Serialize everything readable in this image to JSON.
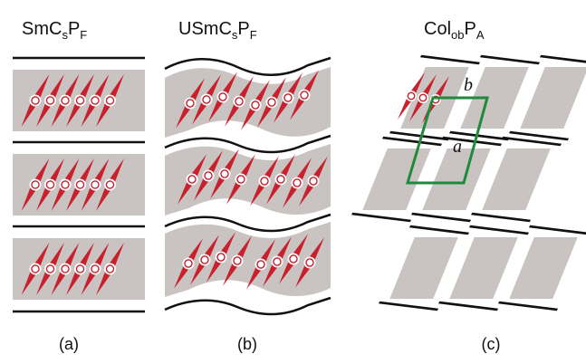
{
  "panels": [
    {
      "title": {
        "main": "SmC",
        "sub1": "s",
        "mid": "P",
        "sub2": "F"
      },
      "caption": "(a)"
    },
    {
      "title": {
        "main": "USmC",
        "sub1": "s",
        "mid": "P",
        "sub2": "F"
      },
      "caption": "(b)"
    },
    {
      "title": {
        "main": "Col",
        "sub1": "ob",
        "mid": "P",
        "sub2": "A"
      },
      "caption": "(c)"
    }
  ],
  "lattice_labels": {
    "a": "a",
    "b": "b"
  },
  "colors": {
    "layer_fill": "#c9c4c2",
    "molecule": "#c8202d",
    "molecule_core": "#ffffff",
    "boundary": "#111111",
    "unit_cell": "#1f8a3b"
  }
}
